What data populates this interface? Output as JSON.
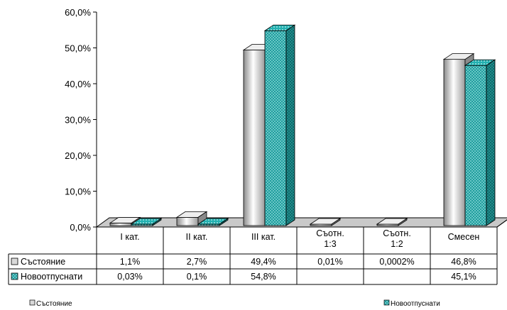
{
  "chart_data": {
    "type": "bar",
    "categories": [
      "I кат.",
      "II кат.",
      "III кат.",
      "Съотн.\n1:3",
      "Съотн.\n1:2",
      "Смесен"
    ],
    "series": [
      {
        "name": "Състояние",
        "values": [
          1.1,
          2.7,
          49.4,
          0.01,
          0.0002,
          46.8
        ],
        "labels": [
          "1,1%",
          "2,7%",
          "49,4%",
          "0,01%",
          "0,0002%",
          "46,8%"
        ],
        "color": "#d9d9d9"
      },
      {
        "name": "Новоотпуснати",
        "values": [
          0.03,
          0.1,
          54.8,
          null,
          null,
          45.1
        ],
        "labels": [
          "0,03%",
          "0,1%",
          "54,8%",
          "",
          "",
          "45,1%"
        ],
        "color": "#1e9a9a"
      }
    ],
    "yticks": [
      "0,0%",
      "10,0%",
      "20,0%",
      "30,0%",
      "40,0%",
      "50,0%",
      "60,0%"
    ],
    "ylim": [
      0,
      60
    ],
    "grid": false,
    "legend_position": "bottom"
  }
}
